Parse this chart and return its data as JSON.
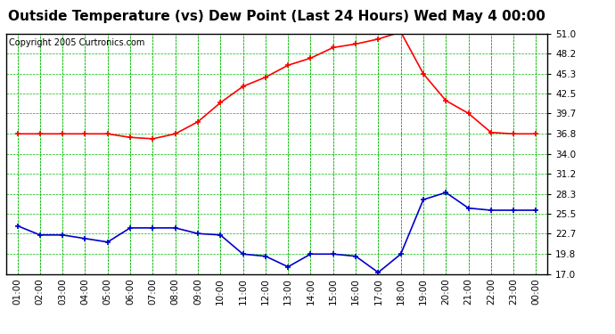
{
  "title": "Outside Temperature (vs) Dew Point (Last 24 Hours) Wed May 4 00:00",
  "copyright": "Copyright 2005 Curtronics.com",
  "x_labels": [
    "01:00",
    "02:00",
    "03:00",
    "04:00",
    "05:00",
    "06:00",
    "07:00",
    "08:00",
    "09:00",
    "10:00",
    "11:00",
    "12:00",
    "13:00",
    "14:00",
    "15:00",
    "16:00",
    "17:00",
    "18:00",
    "19:00",
    "20:00",
    "21:00",
    "22:00",
    "23:00",
    "00:00"
  ],
  "y_ticks": [
    17.0,
    19.8,
    22.7,
    25.5,
    28.3,
    31.2,
    34.0,
    36.8,
    39.7,
    42.5,
    45.3,
    48.2,
    51.0
  ],
  "y_min": 17.0,
  "y_max": 51.0,
  "temp_data": [
    36.8,
    36.8,
    36.8,
    36.8,
    36.8,
    36.3,
    36.1,
    36.8,
    38.5,
    41.2,
    43.5,
    44.8,
    46.5,
    47.5,
    49.0,
    49.5,
    50.2,
    51.2,
    45.3,
    41.5,
    39.7,
    37.0,
    36.8,
    36.8
  ],
  "dew_data": [
    23.8,
    22.5,
    22.5,
    22.0,
    21.5,
    23.5,
    23.5,
    23.5,
    22.7,
    22.5,
    19.8,
    19.5,
    18.0,
    19.8,
    19.8,
    19.5,
    17.2,
    19.8,
    27.5,
    28.5,
    26.3,
    26.0,
    26.0,
    26.0
  ],
  "temp_color": "#ff0000",
  "dew_color": "#0000cc",
  "bg_color": "#ffffff",
  "plot_bg_color": "#ffffff",
  "grid_color": "#00bb00",
  "border_color": "#000000",
  "title_fontsize": 11,
  "copyright_fontsize": 7
}
